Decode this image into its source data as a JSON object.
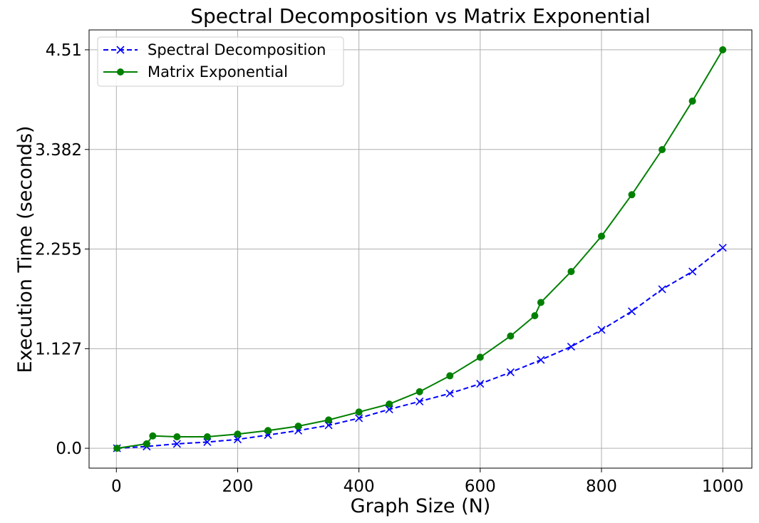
{
  "chart_data": {
    "type": "line",
    "title": "Spectral Decomposition vs Matrix Exponential",
    "xlabel": "Graph Size (N)",
    "ylabel": "Execution Time (seconds)",
    "xlim": [
      -45,
      1048
    ],
    "ylim": [
      -0.225,
      4.735
    ],
    "xticks": [
      0,
      200,
      400,
      600,
      800,
      1000
    ],
    "xtick_labels": [
      "0",
      "200",
      "400",
      "600",
      "800",
      "1000"
    ],
    "yticks": [
      0.0,
      1.127,
      2.255,
      3.382,
      4.51
    ],
    "ytick_labels": [
      "0.0",
      "1.127",
      "2.255",
      "3.382",
      "4.51"
    ],
    "grid": true,
    "legend_position": "upper-left",
    "series": [
      {
        "name": "Spectral Decomposition",
        "color": "#0000ff",
        "line_style": "dashed",
        "marker": "x",
        "x": [
          1,
          50,
          100,
          150,
          200,
          250,
          300,
          350,
          400,
          450,
          500,
          550,
          600,
          650,
          700,
          750,
          800,
          850,
          900,
          950,
          1000
        ],
        "y": [
          0.0,
          0.02,
          0.05,
          0.07,
          0.1,
          0.15,
          0.2,
          0.26,
          0.34,
          0.44,
          0.53,
          0.62,
          0.73,
          0.86,
          1.0,
          1.15,
          1.34,
          1.55,
          1.8,
          2.0,
          2.27
        ]
      },
      {
        "name": "Matrix Exponential",
        "color": "#008000",
        "line_style": "solid",
        "marker": "o",
        "x": [
          1,
          50,
          60,
          100,
          150,
          200,
          250,
          300,
          350,
          400,
          450,
          500,
          550,
          600,
          650,
          690,
          700,
          750,
          800,
          850,
          900,
          950,
          1000
        ],
        "y": [
          0.0,
          0.05,
          0.14,
          0.13,
          0.13,
          0.16,
          0.2,
          0.25,
          0.32,
          0.41,
          0.5,
          0.64,
          0.82,
          1.03,
          1.27,
          1.5,
          1.65,
          2.0,
          2.4,
          2.87,
          3.38,
          3.93,
          4.51
        ]
      }
    ]
  }
}
